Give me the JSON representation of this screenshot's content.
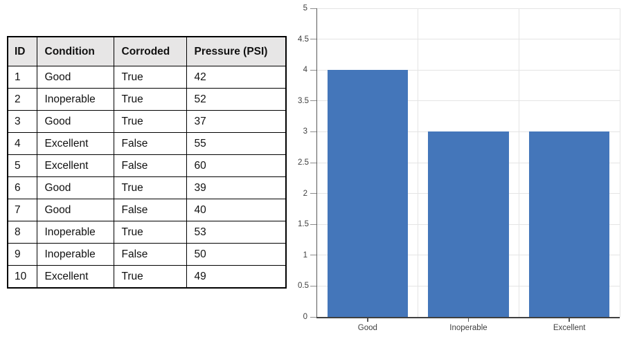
{
  "table": {
    "columns": [
      "ID",
      "Condition",
      "Corroded",
      "Pressure (PSI)"
    ],
    "rows": [
      [
        "1",
        "Good",
        "True",
        "42"
      ],
      [
        "2",
        "Inoperable",
        "True",
        "52"
      ],
      [
        "3",
        "Good",
        "True",
        "37"
      ],
      [
        "4",
        "Excellent",
        "False",
        "55"
      ],
      [
        "5",
        "Excellent",
        "False",
        "60"
      ],
      [
        "6",
        "Good",
        "True",
        "39"
      ],
      [
        "7",
        "Good",
        "False",
        "40"
      ],
      [
        "8",
        "Inoperable",
        "True",
        "53"
      ],
      [
        "9",
        "Inoperable",
        "False",
        "50"
      ],
      [
        "10",
        "Excellent",
        "True",
        "49"
      ]
    ],
    "header_bg": "#E7E6E6",
    "border_color": "#000000"
  },
  "chart_data": {
    "type": "bar",
    "title": "",
    "xlabel": "",
    "ylabel": "",
    "categories": [
      "Good",
      "Inoperable",
      "Excellent"
    ],
    "values": [
      4,
      3,
      3
    ],
    "ylim": [
      0,
      5
    ],
    "ytick_step": 0.5,
    "ytick_labels": [
      "0",
      "0.5",
      "1",
      "1.5",
      "2",
      "2.5",
      "3",
      "3.5",
      "4",
      "4.5",
      "5"
    ],
    "grid": true,
    "legend": false,
    "bar_color": "#4476BA",
    "gridline_color": "#E4E4E4",
    "axis_line_color": "#595959",
    "baseline_color": "#404040",
    "tick_color": "#8C8C8C",
    "tick_label_color": "#3F3F3F"
  }
}
